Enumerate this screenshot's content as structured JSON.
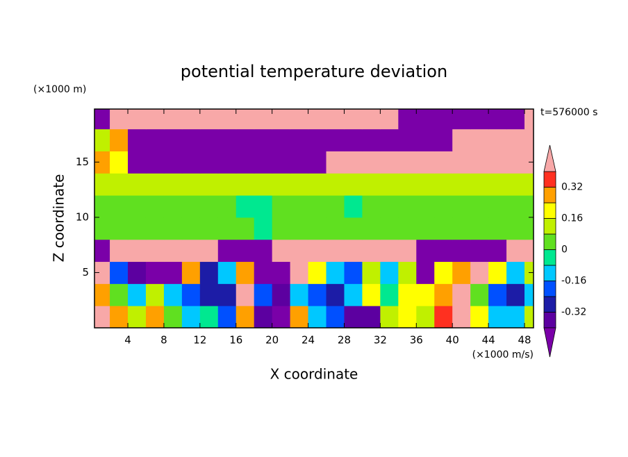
{
  "chart_data": {
    "type": "contour",
    "title": "potential temperature deviation",
    "x_label": "X coordinate",
    "y_label": "Z coordinate",
    "x_unit": "(×1000 m/s)",
    "y_unit": "(×1000 m)",
    "annotation": "t=576000 s",
    "x": [
      1,
      3,
      5,
      7,
      9,
      11,
      13,
      15,
      17,
      19,
      21,
      23,
      25,
      27,
      29,
      31,
      33,
      35,
      37,
      39,
      41,
      43,
      45,
      47,
      49
    ],
    "z": [
      1,
      3,
      5,
      7,
      9,
      11,
      13,
      15,
      17,
      19
    ],
    "values": [
      [
        0.5,
        0.3,
        0.1,
        0.3,
        0.0,
        -0.1,
        -0.05,
        -0.2,
        0.3,
        -0.4,
        -0.45,
        0.3,
        -0.1,
        -0.2,
        -0.35,
        -0.35,
        0.1,
        0.2,
        0.1,
        0.35,
        0.4,
        0.2,
        -0.1,
        -0.1,
        0.1
      ],
      [
        0.3,
        0.0,
        -0.1,
        0.1,
        -0.1,
        -0.2,
        -0.3,
        -0.25,
        0.4,
        -0.2,
        -0.4,
        -0.1,
        -0.2,
        -0.3,
        -0.1,
        0.2,
        -0.05,
        0.2,
        0.2,
        0.3,
        0.5,
        0.0,
        -0.2,
        -0.3,
        -0.1
      ],
      [
        0.5,
        -0.2,
        -0.4,
        -0.5,
        -0.5,
        0.3,
        -0.3,
        -0.1,
        0.3,
        -0.45,
        -0.5,
        0.5,
        0.2,
        -0.1,
        -0.2,
        0.1,
        -0.1,
        0.1,
        -0.45,
        0.2,
        0.25,
        0.45,
        0.2,
        -0.1,
        0.1
      ],
      [
        -0.5,
        0.5,
        0.5,
        0.5,
        0.5,
        0.5,
        0.5,
        -0.5,
        -0.5,
        -0.5,
        0.5,
        0.5,
        0.5,
        0.5,
        0.5,
        0.5,
        0.5,
        0.5,
        -0.5,
        -0.5,
        -0.5,
        -0.5,
        -0.5,
        0.5,
        0.5
      ],
      [
        0.05,
        0.05,
        0.05,
        0.05,
        0.05,
        0.05,
        0.05,
        0.05,
        0.02,
        -0.05,
        0.02,
        0.05,
        0.05,
        0.05,
        0.05,
        0.05,
        0.05,
        0.05,
        0.05,
        0.05,
        0.05,
        0.05,
        0.05,
        0.05,
        0.05
      ],
      [
        0.04,
        0.04,
        0.04,
        0.04,
        0.02,
        0.02,
        0.02,
        0.02,
        -0.02,
        -0.02,
        0.02,
        0.04,
        0.04,
        0.02,
        -0.02,
        0.02,
        0.04,
        0.04,
        0.04,
        0.04,
        0.04,
        0.04,
        0.04,
        0.04,
        0.04
      ],
      [
        0.1,
        0.1,
        0.1,
        0.1,
        0.1,
        0.1,
        0.1,
        0.1,
        0.1,
        0.1,
        0.1,
        0.1,
        0.1,
        0.1,
        0.1,
        0.1,
        0.1,
        0.1,
        0.1,
        0.1,
        0.1,
        0.1,
        0.1,
        0.1,
        0.1
      ],
      [
        0.3,
        0.2,
        -0.5,
        -0.5,
        -0.5,
        -0.5,
        -0.5,
        -0.5,
        -0.5,
        -0.5,
        -0.5,
        -0.5,
        -0.5,
        0.5,
        0.5,
        0.5,
        0.5,
        0.5,
        0.5,
        0.5,
        0.5,
        0.5,
        0.5,
        0.5,
        0.5
      ],
      [
        0.1,
        0.3,
        -0.5,
        -0.5,
        -0.5,
        -0.5,
        -0.5,
        -0.5,
        -0.5,
        -0.5,
        -0.5,
        -0.5,
        -0.5,
        -0.5,
        -0.5,
        -0.5,
        -0.5,
        -0.5,
        -0.5,
        -0.5,
        0.5,
        0.5,
        0.5,
        0.5,
        0.5
      ],
      [
        -0.5,
        0.5,
        0.5,
        0.5,
        0.5,
        0.5,
        0.5,
        0.5,
        0.5,
        0.5,
        0.5,
        0.5,
        0.5,
        0.5,
        0.5,
        0.5,
        0.5,
        -0.5,
        -0.5,
        -0.5,
        -0.5,
        -0.5,
        -0.5,
        -0.5,
        0.5
      ]
    ],
    "levels": [
      -0.4,
      -0.32,
      -0.24,
      -0.16,
      -0.08,
      0,
      0.08,
      0.16,
      0.24,
      0.32,
      0.4
    ],
    "colors": [
      "#7a00a8",
      "#5c00a0",
      "#1c1ca6",
      "#0050ff",
      "#00c8ff",
      "#00e890",
      "#60e020",
      "#c0f000",
      "#ffff00",
      "#ffa000",
      "#ff3020",
      "#f8a8a8"
    ],
    "cbticks": [
      -0.32,
      -0.16,
      0,
      0.16,
      0.32
    ],
    "xlim": [
      0.3,
      49
    ],
    "ylim": [
      0,
      19.8
    ],
    "xticks": [
      4,
      8,
      12,
      16,
      20,
      24,
      28,
      32,
      36,
      40,
      44,
      48
    ],
    "yticks": [
      5,
      10,
      15
    ]
  }
}
